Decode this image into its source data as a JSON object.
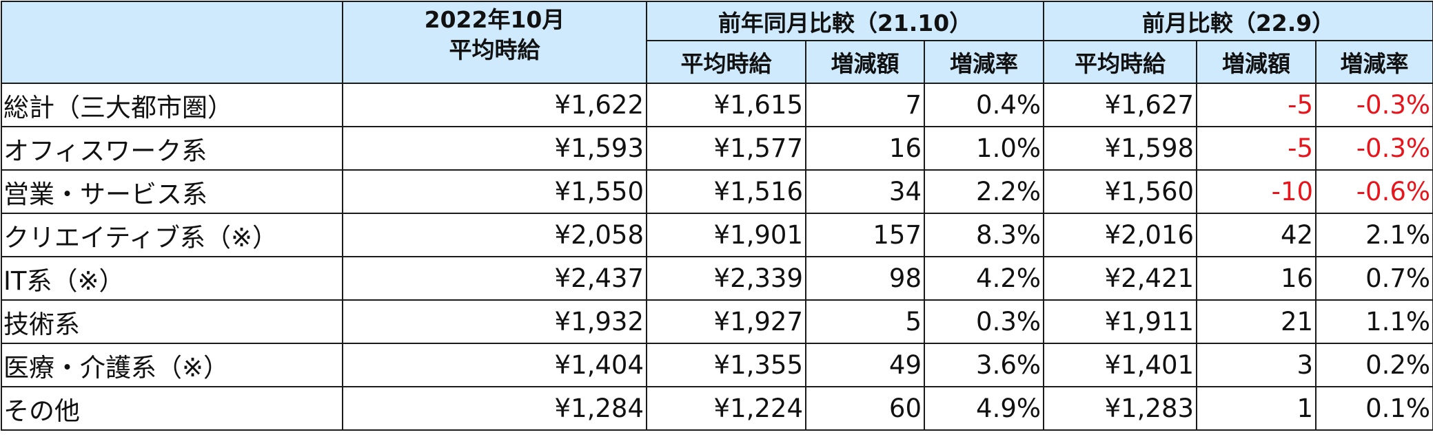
{
  "header": {
    "current": [
      "2022年10月",
      "平均時給"
    ],
    "yoy": "前年同月比較（21.10）",
    "mom": "前月比較（22.9）",
    "sub_columns": [
      "平均時給",
      "増減額",
      "増減率",
      "平均時給",
      "増減額",
      "増減率"
    ]
  },
  "table": {
    "rows": [
      [
        "総計（三大都市圏）",
        "¥1,622",
        "¥1,615",
        "7",
        "0.4%",
        "¥1,627",
        "-5",
        "-0.3%"
      ],
      [
        "オフィスワーク系",
        "¥1,593",
        "¥1,577",
        "16",
        "1.0%",
        "¥1,598",
        "-5",
        "-0.3%"
      ],
      [
        "営業・サービス系",
        "¥1,550",
        "¥1,516",
        "34",
        "2.2%",
        "¥1,560",
        "-10",
        "-0.6%"
      ],
      [
        "クリエイティブ系（※）",
        "¥2,058",
        "¥1,901",
        "157",
        "8.3%",
        "¥2,016",
        "42",
        "2.1%"
      ],
      [
        "IT系（※）",
        "¥2,437",
        "¥2,339",
        "98",
        "4.2%",
        "¥2,421",
        "16",
        "0.7%"
      ],
      [
        "技術系",
        "¥1,932",
        "¥1,927",
        "5",
        "0.3%",
        "¥1,911",
        "21",
        "1.1%"
      ],
      [
        "医療・介護系（※）",
        "¥1,404",
        "¥1,355",
        "49",
        "3.6%",
        "¥1,401",
        "3",
        "0.2%"
      ],
      [
        "その他",
        "¥1,284",
        "¥1,224",
        "60",
        "4.9%",
        "¥1,283",
        "1",
        "0.1%"
      ]
    ]
  }
}
